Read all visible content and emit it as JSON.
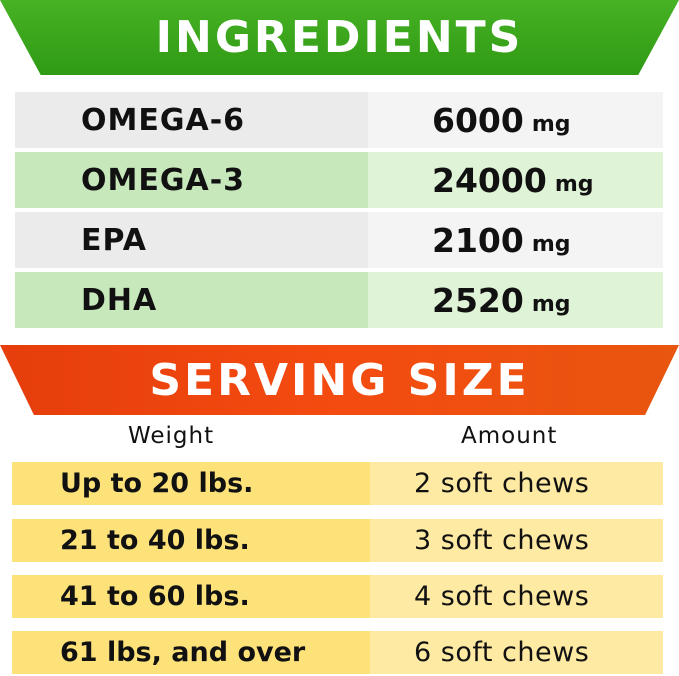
{
  "ingredients": {
    "title": "INGREDIENTS",
    "rows": [
      {
        "name": "OMEGA-6",
        "value": "6000",
        "unit": "mg"
      },
      {
        "name": "OMEGA-3",
        "value": "24000",
        "unit": "mg"
      },
      {
        "name": "EPA",
        "value": "2100",
        "unit": "mg"
      },
      {
        "name": "DHA",
        "value": "2520",
        "unit": "mg"
      }
    ]
  },
  "serving": {
    "title": "SERVING SIZE",
    "headers": {
      "weight": "Weight",
      "amount": "Amount"
    },
    "rows": [
      {
        "weight": "Up to 20 lbs.",
        "amount": "2 soft chews"
      },
      {
        "weight": "21 to 40 lbs.",
        "amount": "3 soft chews"
      },
      {
        "weight": "41 to 60 lbs.",
        "amount": "4 soft chews"
      },
      {
        "weight": "61 lbs, and over",
        "amount": "6 soft chews"
      }
    ]
  },
  "colors": {
    "green": "#3aa51a",
    "orange": "#ec4a10",
    "yellow": "#fde27a"
  }
}
